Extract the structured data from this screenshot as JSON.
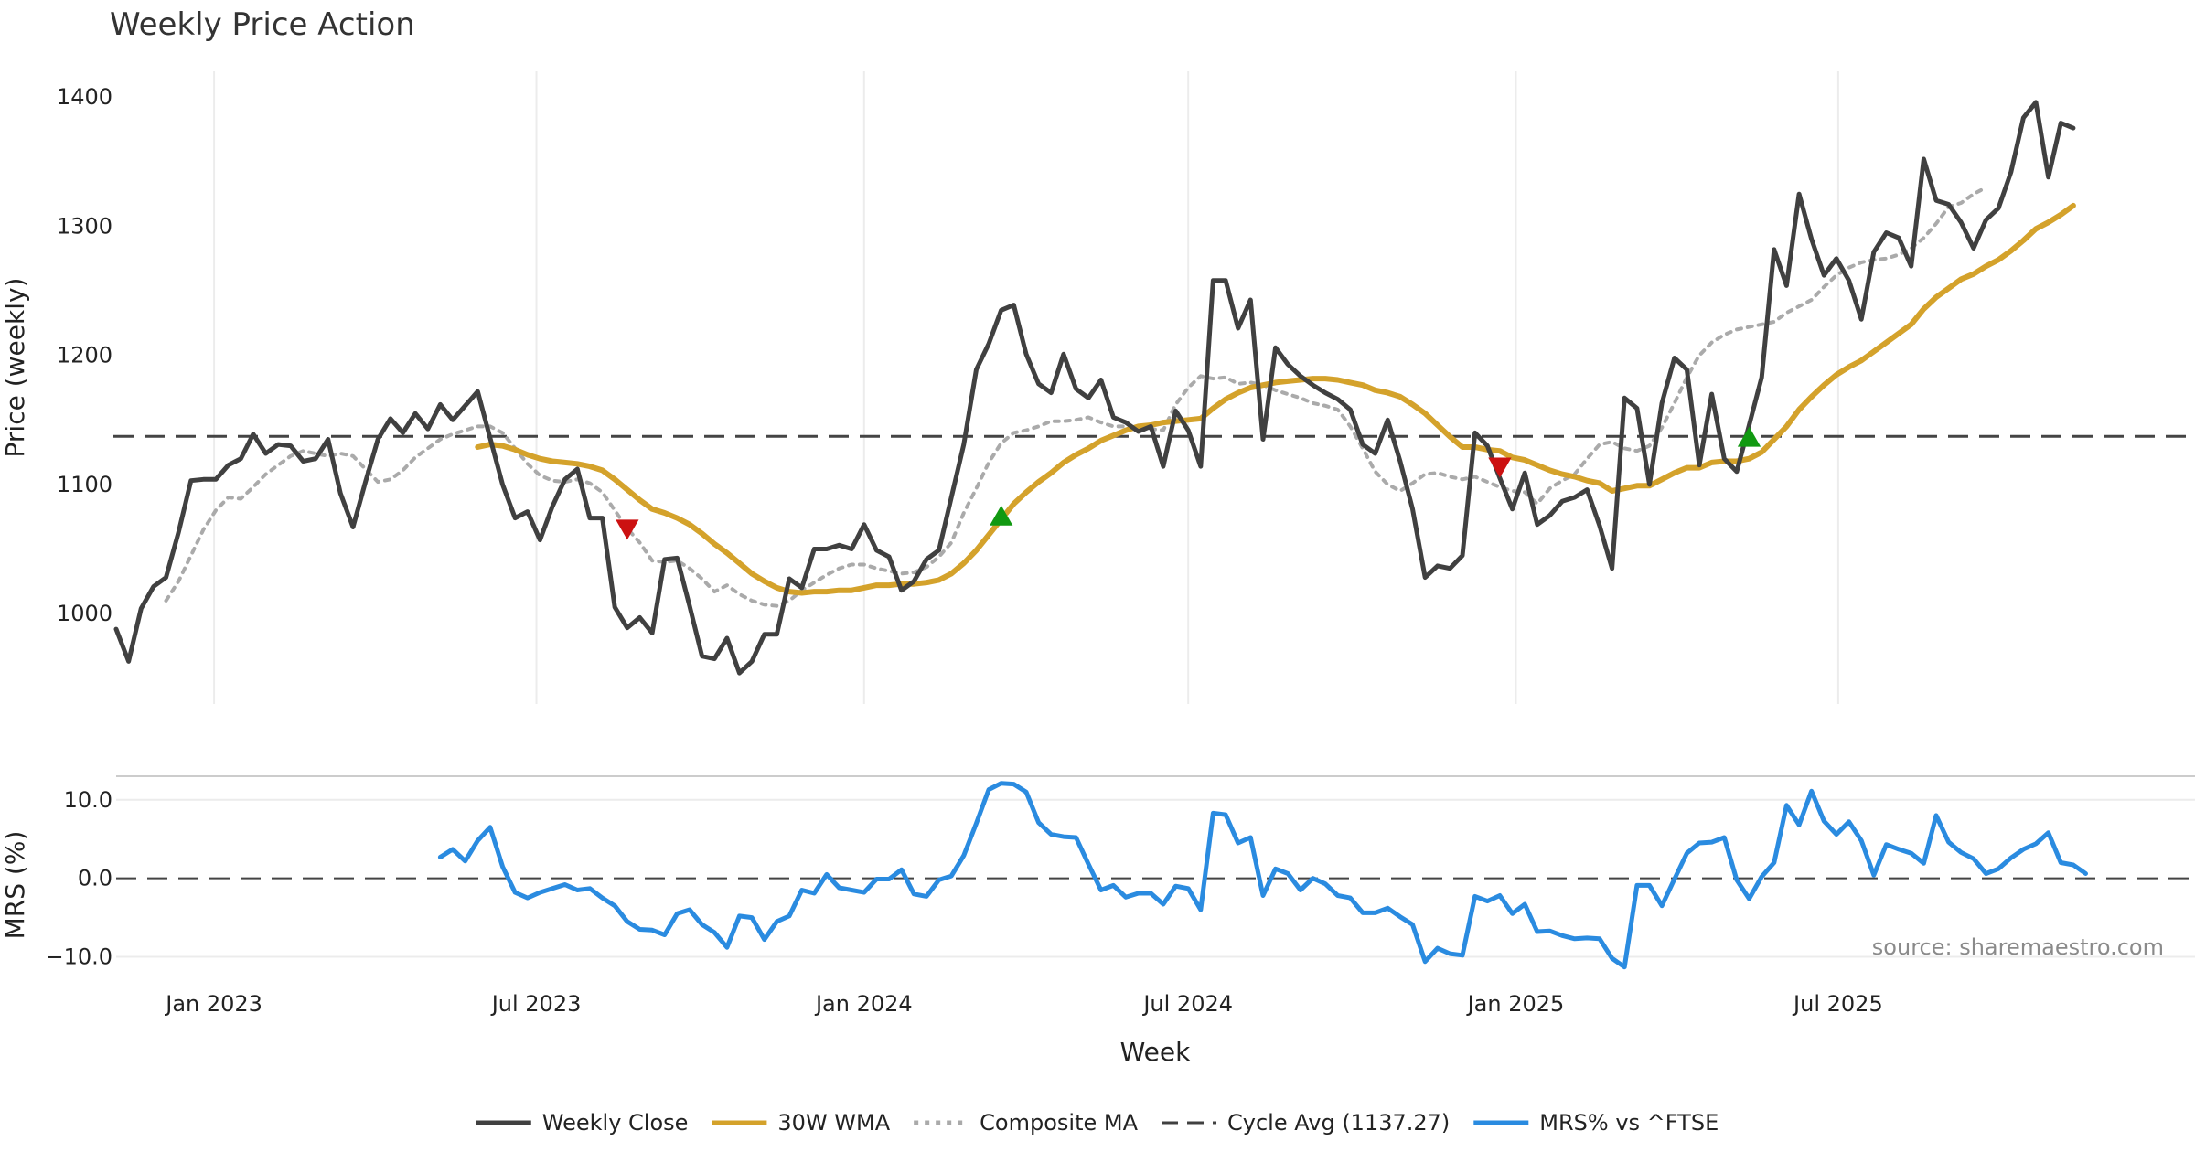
{
  "chart_data": {
    "type": "line",
    "title": "Weekly Price Action",
    "xlabel": "Week",
    "x_ticks": [
      "Jan 2023",
      "Jul 2023",
      "Jan 2024",
      "Jul 2024",
      "Jan 2025",
      "Jul 2025"
    ],
    "x_range": [
      "2022-11-07",
      "2025-11-03"
    ],
    "grid": true,
    "price_panel": {
      "ylabel": "Price (weekly)",
      "ylim": [
        930,
        1420
      ],
      "y_ticks": [
        1000,
        1100,
        1200,
        1300,
        1400
      ],
      "cycle_avg": 1137.27,
      "series": [
        {
          "name": "Weekly Close",
          "color": "#404040",
          "style": "solid",
          "start_week": 0,
          "values": [
            988,
            963,
            1004,
            1021,
            1028,
            1063,
            1103,
            1104,
            1104,
            1115,
            1120,
            1139,
            1124,
            1131,
            1130,
            1118,
            1120,
            1135,
            1093,
            1067,
            1102,
            1135,
            1151,
            1140,
            1155,
            1143,
            1162,
            1150,
            1161,
            1172,
            1136,
            1100,
            1074,
            1079,
            1057,
            1083,
            1104,
            1112,
            1074,
            1074,
            1005,
            989,
            997,
            985,
            1042,
            1043,
            1006,
            967,
            965,
            981,
            954,
            963,
            984,
            984,
            1027,
            1020,
            1050,
            1050,
            1053,
            1050,
            1069,
            1049,
            1044,
            1018,
            1025,
            1042,
            1049,
            1090,
            1131,
            1189,
            1209,
            1235,
            1239,
            1201,
            1178,
            1171,
            1201,
            1174,
            1167,
            1181,
            1152,
            1148,
            1141,
            1145,
            1114,
            1157,
            1142,
            1114,
            1258,
            1258,
            1221,
            1243,
            1135,
            1206,
            1193,
            1184,
            1177,
            1171,
            1166,
            1158,
            1131,
            1124,
            1150,
            1118,
            1081,
            1028,
            1037,
            1035,
            1045,
            1140,
            1130,
            1105,
            1081,
            1109,
            1069,
            1076,
            1087,
            1090,
            1096,
            1068,
            1035,
            1167,
            1159,
            1100,
            1163,
            1198,
            1189,
            1115,
            1170,
            1120,
            1110,
            1146,
            1183,
            1282,
            1254,
            1325,
            1290,
            1262,
            1275,
            1258,
            1228,
            1280,
            1295,
            1291,
            1269,
            1352,
            1320,
            1317,
            1303,
            1283,
            1305,
            1314,
            1342,
            1384,
            1396,
            1338,
            1380,
            1376
          ]
        },
        {
          "name": "30W WMA",
          "color": "#D4A22B",
          "style": "solid",
          "start_week": 29,
          "values": [
            1129,
            1131,
            1130,
            1127,
            1123,
            1120,
            1118,
            1117,
            1116,
            1114,
            1111,
            1104,
            1096,
            1088,
            1081,
            1078,
            1074,
            1069,
            1062,
            1054,
            1047,
            1039,
            1031,
            1025,
            1020,
            1017,
            1016,
            1017,
            1017,
            1018,
            1018,
            1020,
            1022,
            1022,
            1023,
            1023,
            1024,
            1026,
            1031,
            1039,
            1049,
            1061,
            1073,
            1085,
            1094,
            1102,
            1109,
            1117,
            1123,
            1128,
            1134,
            1138,
            1142,
            1145,
            1146,
            1148,
            1149,
            1150,
            1151,
            1159,
            1166,
            1171,
            1175,
            1177,
            1179,
            1180,
            1181,
            1182,
            1182,
            1181,
            1179,
            1177,
            1173,
            1171,
            1168,
            1162,
            1155,
            1146,
            1137,
            1129,
            1129,
            1127,
            1126,
            1121,
            1119,
            1115,
            1111,
            1108,
            1106,
            1103,
            1101,
            1095,
            1097,
            1099,
            1099,
            1104,
            1109,
            1113,
            1113,
            1117,
            1118,
            1118,
            1120,
            1125,
            1135,
            1145,
            1158,
            1168,
            1177,
            1185,
            1191,
            1196,
            1203,
            1210,
            1217,
            1224,
            1236,
            1245,
            1252,
            1259,
            1263,
            1269,
            1274,
            1281,
            1289,
            1298,
            1303,
            1309,
            1316
          ]
        },
        {
          "name": "Composite MA",
          "color": "#AAAAAA",
          "style": "dotted",
          "start_week": 4,
          "values": [
            1010,
            1025,
            1045,
            1065,
            1080,
            1090,
            1089,
            1098,
            1108,
            1115,
            1122,
            1126,
            1124,
            1122,
            1124,
            1122,
            1112,
            1102,
            1104,
            1111,
            1121,
            1128,
            1135,
            1139,
            1142,
            1145,
            1145,
            1140,
            1128,
            1116,
            1107,
            1103,
            1102,
            1104,
            1101,
            1094,
            1080,
            1066,
            1055,
            1041,
            1040,
            1041,
            1035,
            1027,
            1017,
            1022,
            1015,
            1010,
            1007,
            1006,
            1010,
            1018,
            1024,
            1030,
            1035,
            1038,
            1038,
            1035,
            1033,
            1031,
            1032,
            1036,
            1044,
            1055,
            1078,
            1097,
            1117,
            1132,
            1140,
            1142,
            1145,
            1149,
            1149,
            1150,
            1152,
            1148,
            1145,
            1145,
            1142,
            1143,
            1142,
            1162,
            1175,
            1184,
            1182,
            1183,
            1178,
            1179,
            1177,
            1173,
            1170,
            1167,
            1163,
            1161,
            1158,
            1145,
            1128,
            1110,
            1100,
            1095,
            1101,
            1108,
            1109,
            1106,
            1104,
            1106,
            1102,
            1098,
            1095,
            1094,
            1085,
            1097,
            1103,
            1108,
            1120,
            1131,
            1133,
            1128,
            1126,
            1130,
            1144,
            1163,
            1183,
            1200,
            1210,
            1216,
            1220,
            1222,
            1224,
            1226,
            1233,
            1238,
            1243,
            1253,
            1262,
            1268,
            1272,
            1274,
            1275,
            1278,
            1283,
            1291,
            1302,
            1315,
            1318,
            1325,
            1330
          ]
        }
      ],
      "markers": [
        {
          "type": "sell",
          "symbol": "down-triangle",
          "color": "#CC1111",
          "week": 41,
          "value": 1065
        },
        {
          "type": "buy",
          "symbol": "up-triangle",
          "color": "#119911",
          "week": 71,
          "value": 1076
        },
        {
          "type": "sell",
          "symbol": "down-triangle",
          "color": "#CC1111",
          "week": 111,
          "value": 1113
        },
        {
          "type": "buy",
          "symbol": "up-triangle",
          "color": "#119911",
          "week": 131,
          "value": 1137
        }
      ]
    },
    "mrs_panel": {
      "ylabel": "MRS (%)",
      "ylim": [
        -12.5,
        13
      ],
      "y_ticks": [
        10.0,
        0.0,
        -10.0
      ],
      "y_tick_labels": [
        "10.0",
        "0.0",
        "−10.0"
      ],
      "zero_line": 0,
      "series": [
        {
          "name": "MRS% vs ^FTSE",
          "color": "#2A8BE0",
          "style": "solid",
          "start_week": 26,
          "values": [
            2.7,
            3.7,
            2.2,
            4.8,
            6.5,
            1.5,
            -1.8,
            -2.5,
            -1.8,
            -1.3,
            -0.8,
            -1.5,
            -1.3,
            -2.5,
            -3.5,
            -5.5,
            -6.5,
            -6.6,
            -7.2,
            -4.5,
            -4.0,
            -5.9,
            -6.9,
            -8.8,
            -4.8,
            -5.0,
            -7.8,
            -5.5,
            -4.8,
            -1.5,
            -1.9,
            0.5,
            -1.2,
            -1.5,
            -1.8,
            -0.1,
            -0.1,
            1.1,
            -2.0,
            -2.3,
            -0.2,
            0.3,
            2.9,
            7.0,
            11.3,
            12.1,
            12.0,
            11.0,
            7.1,
            5.6,
            5.3,
            5.2,
            1.8,
            -1.5,
            -0.9,
            -2.4,
            -1.9,
            -1.9,
            -3.3,
            -1.0,
            -1.3,
            -4.0,
            8.3,
            8.1,
            4.5,
            5.2,
            -2.2,
            1.2,
            0.6,
            -1.5,
            0.0,
            -0.7,
            -2.2,
            -2.5,
            -4.4,
            -4.4,
            -3.8,
            -4.9,
            -5.9,
            -10.6,
            -8.9,
            -9.6,
            -9.8,
            -2.3,
            -2.9,
            -2.2,
            -4.5,
            -3.3,
            -6.8,
            -6.7,
            -7.3,
            -7.7,
            -7.6,
            -7.7,
            -10.2,
            -11.3,
            -0.9,
            -0.9,
            -3.5,
            -0.1,
            3.2,
            4.5,
            4.6,
            5.2,
            -0.2,
            -2.6,
            0.2,
            2.0,
            9.3,
            6.8,
            11.1,
            7.3,
            5.6,
            7.2,
            4.8,
            0.4,
            4.3,
            3.7,
            3.2,
            1.9,
            8.0,
            4.6,
            3.3,
            2.5,
            0.6,
            1.2,
            2.6,
            3.7,
            4.4,
            5.8,
            2.0,
            1.7,
            0.6
          ]
        }
      ]
    },
    "source_note": "source: sharemaestro.com",
    "legend": [
      {
        "label": "Weekly Close",
        "color": "#404040",
        "style": "solid"
      },
      {
        "label": "30W WMA",
        "color": "#D4A22B",
        "style": "solid"
      },
      {
        "label": "Composite MA",
        "color": "#AAAAAA",
        "style": "dotted"
      },
      {
        "label": "Cycle Avg (1137.27)",
        "color": "#404040",
        "style": "dashed"
      },
      {
        "label": "MRS% vs ^FTSE",
        "color": "#2A8BE0",
        "style": "solid"
      }
    ],
    "legend_position": "bottom-center"
  }
}
